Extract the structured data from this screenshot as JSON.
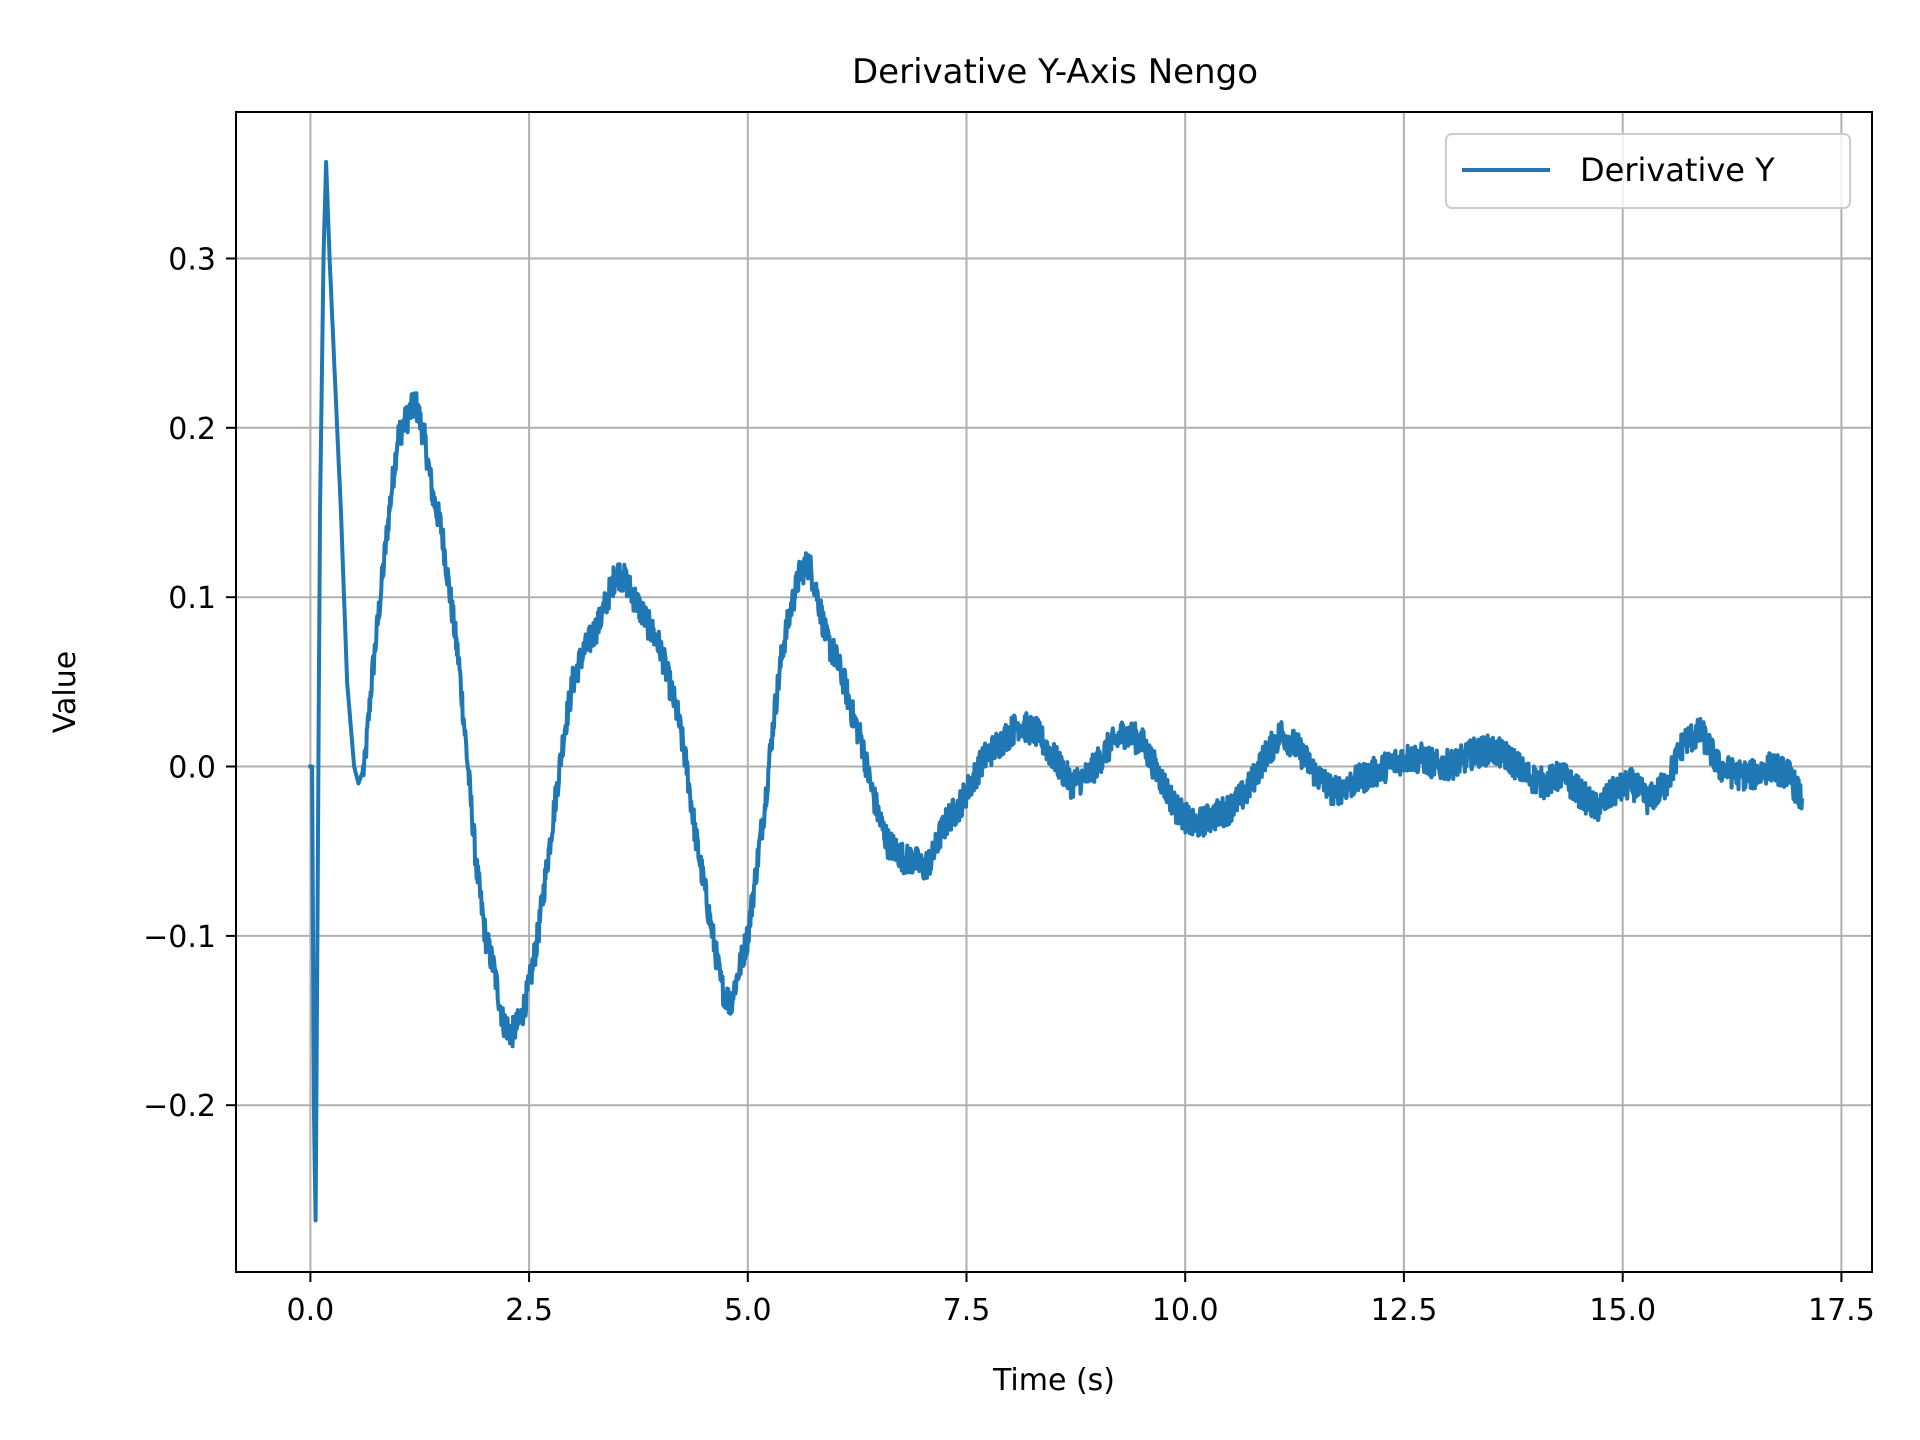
{
  "chart_data": {
    "type": "line",
    "title": "Derivative Y-Axis Nengo",
    "xlabel": "Time (s)",
    "ylabel": "Value",
    "xlim": [
      -0.85,
      17.85
    ],
    "ylim": [
      -0.2985,
      0.3865
    ],
    "xticks": [
      0.0,
      2.5,
      5.0,
      7.5,
      10.0,
      12.5,
      15.0,
      17.5
    ],
    "xtick_labels": [
      "0.0",
      "2.5",
      "5.0",
      "7.5",
      "10.0",
      "12.5",
      "15.0",
      "17.5"
    ],
    "yticks": [
      -0.2,
      -0.1,
      0.0,
      0.1,
      0.2,
      0.3
    ],
    "ytick_labels": [
      "−0.2",
      "−0.1",
      "0.0",
      "0.1",
      "0.2",
      "0.3"
    ],
    "grid": true,
    "legend": {
      "position": "top-right"
    },
    "series": [
      {
        "name": "Derivative Y",
        "color": "#1f77b4",
        "noise_amplitude": 0.009,
        "points": [
          [
            0.0,
            0.0
          ],
          [
            0.02,
            0.0
          ],
          [
            0.04,
            -0.2
          ],
          [
            0.06,
            -0.268
          ],
          [
            0.08,
            -0.1
          ],
          [
            0.11,
            0.15
          ],
          [
            0.15,
            0.3
          ],
          [
            0.18,
            0.357
          ],
          [
            0.22,
            0.3
          ],
          [
            0.28,
            0.23
          ],
          [
            0.35,
            0.15
          ],
          [
            0.42,
            0.05
          ],
          [
            0.5,
            0.0
          ],
          [
            0.55,
            -0.01
          ],
          [
            0.62,
            0.0
          ],
          [
            0.7,
            0.05
          ],
          [
            0.8,
            0.1
          ],
          [
            0.9,
            0.15
          ],
          [
            1.0,
            0.195
          ],
          [
            1.1,
            0.205
          ],
          [
            1.2,
            0.215
          ],
          [
            1.3,
            0.195
          ],
          [
            1.4,
            0.16
          ],
          [
            1.5,
            0.14
          ],
          [
            1.6,
            0.1
          ],
          [
            1.7,
            0.06
          ],
          [
            1.8,
            0.0
          ],
          [
            1.9,
            -0.06
          ],
          [
            2.0,
            -0.1
          ],
          [
            2.1,
            -0.12
          ],
          [
            2.2,
            -0.15
          ],
          [
            2.3,
            -0.158
          ],
          [
            2.4,
            -0.15
          ],
          [
            2.5,
            -0.13
          ],
          [
            2.6,
            -0.1
          ],
          [
            2.7,
            -0.06
          ],
          [
            2.8,
            -0.02
          ],
          [
            2.9,
            0.02
          ],
          [
            3.0,
            0.05
          ],
          [
            3.1,
            0.065
          ],
          [
            3.2,
            0.075
          ],
          [
            3.3,
            0.085
          ],
          [
            3.4,
            0.1
          ],
          [
            3.5,
            0.115
          ],
          [
            3.6,
            0.11
          ],
          [
            3.7,
            0.1
          ],
          [
            3.8,
            0.09
          ],
          [
            3.9,
            0.08
          ],
          [
            4.0,
            0.07
          ],
          [
            4.1,
            0.05
          ],
          [
            4.2,
            0.03
          ],
          [
            4.3,
            0.0
          ],
          [
            4.4,
            -0.04
          ],
          [
            4.5,
            -0.07
          ],
          [
            4.6,
            -0.1
          ],
          [
            4.7,
            -0.13
          ],
          [
            4.8,
            -0.14
          ],
          [
            4.9,
            -0.12
          ],
          [
            5.0,
            -0.1
          ],
          [
            5.1,
            -0.06
          ],
          [
            5.2,
            -0.02
          ],
          [
            5.3,
            0.03
          ],
          [
            5.4,
            0.07
          ],
          [
            5.5,
            0.095
          ],
          [
            5.6,
            0.115
          ],
          [
            5.7,
            0.12
          ],
          [
            5.8,
            0.1
          ],
          [
            5.9,
            0.075
          ],
          [
            6.0,
            0.065
          ],
          [
            6.1,
            0.05
          ],
          [
            6.2,
            0.03
          ],
          [
            6.3,
            0.015
          ],
          [
            6.4,
            -0.01
          ],
          [
            6.5,
            -0.03
          ],
          [
            6.6,
            -0.045
          ],
          [
            6.7,
            -0.05
          ],
          [
            6.8,
            -0.055
          ],
          [
            6.9,
            -0.055
          ],
          [
            7.0,
            -0.06
          ],
          [
            7.1,
            -0.055
          ],
          [
            7.2,
            -0.04
          ],
          [
            7.3,
            -0.03
          ],
          [
            7.4,
            -0.025
          ],
          [
            7.5,
            -0.015
          ],
          [
            7.7,
            0.005
          ],
          [
            7.9,
            0.015
          ],
          [
            8.1,
            0.025
          ],
          [
            8.3,
            0.02
          ],
          [
            8.5,
            0.005
          ],
          [
            8.7,
            -0.01
          ],
          [
            8.9,
            -0.005
          ],
          [
            9.1,
            0.01
          ],
          [
            9.3,
            0.02
          ],
          [
            9.5,
            0.015
          ],
          [
            9.7,
            -0.005
          ],
          [
            9.9,
            -0.025
          ],
          [
            10.1,
            -0.035
          ],
          [
            10.3,
            -0.03
          ],
          [
            10.5,
            -0.025
          ],
          [
            10.7,
            -0.015
          ],
          [
            10.9,
            0.005
          ],
          [
            11.1,
            0.02
          ],
          [
            11.3,
            0.01
          ],
          [
            11.5,
            -0.005
          ],
          [
            11.7,
            -0.015
          ],
          [
            11.9,
            -0.01
          ],
          [
            12.1,
            -0.005
          ],
          [
            12.3,
            0.0
          ],
          [
            12.5,
            0.005
          ],
          [
            12.7,
            0.005
          ],
          [
            12.9,
            0.0
          ],
          [
            13.1,
            0.002
          ],
          [
            13.3,
            0.008
          ],
          [
            13.5,
            0.01
          ],
          [
            13.7,
            0.005
          ],
          [
            13.9,
            -0.005
          ],
          [
            14.1,
            -0.01
          ],
          [
            14.3,
            -0.005
          ],
          [
            14.5,
            -0.015
          ],
          [
            14.7,
            -0.025
          ],
          [
            14.9,
            -0.015
          ],
          [
            15.1,
            -0.01
          ],
          [
            15.3,
            -0.02
          ],
          [
            15.5,
            -0.01
          ],
          [
            15.7,
            0.015
          ],
          [
            15.9,
            0.02
          ],
          [
            16.1,
            0.0
          ],
          [
            16.3,
            -0.005
          ],
          [
            16.5,
            -0.005
          ],
          [
            16.7,
            0.0
          ],
          [
            16.9,
            -0.005
          ],
          [
            17.0,
            -0.015
          ],
          [
            17.05,
            -0.02
          ]
        ]
      }
    ]
  }
}
